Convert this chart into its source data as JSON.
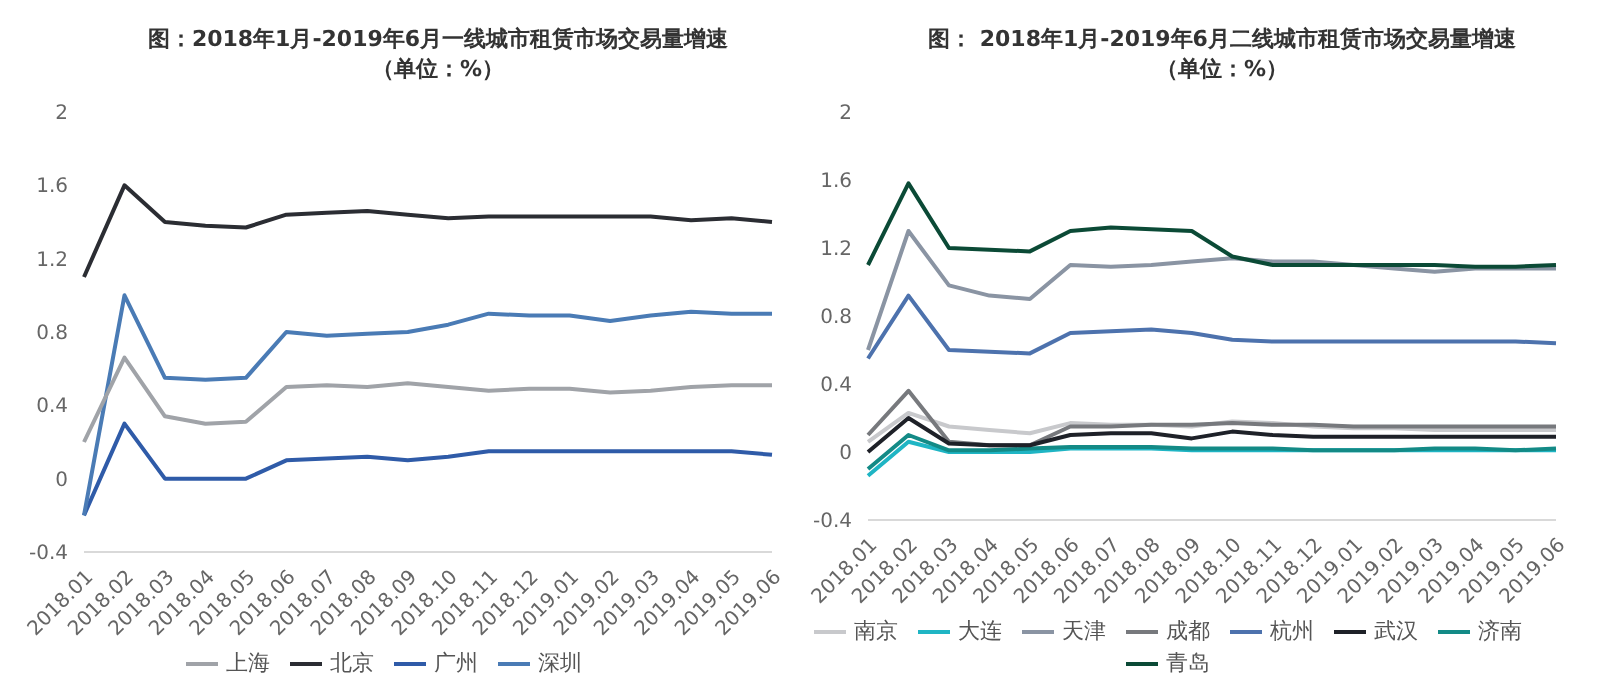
{
  "chart_data": [
    {
      "type": "line",
      "title": "图：2018年1月-2019年6月一线城市租赁市场交易量增速",
      "subtitle": "（单位：%）",
      "categories": [
        "2018.01",
        "2018.02",
        "2018.03",
        "2018.04",
        "2018.05",
        "2018.06",
        "2018.07",
        "2018.08",
        "2018.09",
        "2018.10",
        "2018.11",
        "2018.12",
        "2019.01",
        "2019.02",
        "2019.03",
        "2019.04",
        "2019.05",
        "2019.06"
      ],
      "ylim": [
        -0.4,
        2
      ],
      "yticks": [
        -0.4,
        0,
        0.4,
        0.8,
        1.2,
        1.6,
        2
      ],
      "grid": false,
      "legend": "bottom",
      "marker": "none",
      "line_style": "solid",
      "series": [
        {
          "name": "北京",
          "color": "#2b2d33",
          "values": [
            1.1,
            1.6,
            1.4,
            1.38,
            1.37,
            1.44,
            1.45,
            1.46,
            1.44,
            1.42,
            1.43,
            1.43,
            1.43,
            1.43,
            1.43,
            1.41,
            1.42,
            1.4
          ]
        },
        {
          "name": "广州",
          "color": "#2f5ba8",
          "values": [
            -0.2,
            0.3,
            0,
            0,
            0,
            0.1,
            0.11,
            0.12,
            0.1,
            0.12,
            0.15,
            0.15,
            0.15,
            0.15,
            0.15,
            0.15,
            0.15,
            0.13
          ]
        },
        {
          "name": "深圳",
          "color": "#4a7bb5",
          "values": [
            -0.2,
            1.0,
            0.55,
            0.54,
            0.55,
            0.8,
            0.78,
            0.79,
            0.8,
            0.84,
            0.9,
            0.89,
            0.89,
            0.86,
            0.89,
            0.91,
            0.9,
            0.9
          ]
        },
        {
          "name": "上海",
          "color": "#a0a3a8",
          "values": [
            0.2,
            0.66,
            0.34,
            0.3,
            0.31,
            0.5,
            0.51,
            0.5,
            0.52,
            0.5,
            0.48,
            0.49,
            0.49,
            0.47,
            0.48,
            0.5,
            0.51,
            0.51
          ]
        }
      ]
    },
    {
      "type": "line",
      "title": "图： 2018年1月-2019年6月二线城市租赁市场交易量增速",
      "subtitle": "（单位：%）",
      "categories": [
        "2018.01",
        "2018.02",
        "2018.03",
        "2018.04",
        "2018.05",
        "2018.06",
        "2018.07",
        "2018.08",
        "2018.09",
        "2018.10",
        "2018.11",
        "2018.12",
        "2019.01",
        "2019.02",
        "2019.03",
        "2019.04",
        "2019.05",
        "2019.06"
      ],
      "ylim": [
        -0.4,
        2
      ],
      "yticks": [
        -0.4,
        0,
        0.4,
        0.8,
        1.2,
        1.6,
        2
      ],
      "grid": false,
      "legend": "bottom",
      "marker": "none",
      "line_style": "solid",
      "series": [
        {
          "name": "天津",
          "color": "#8a94a3",
          "values": [
            0.6,
            1.3,
            0.98,
            0.92,
            0.9,
            1.1,
            1.09,
            1.1,
            1.12,
            1.14,
            1.12,
            1.12,
            1.1,
            1.08,
            1.06,
            1.08,
            1.08,
            1.08
          ]
        },
        {
          "name": "南京",
          "color": "#c8c9cc",
          "values": [
            0.06,
            0.23,
            0.15,
            0.13,
            0.11,
            0.17,
            0.16,
            0.16,
            0.15,
            0.18,
            0.17,
            0.15,
            0.14,
            0.14,
            0.13,
            0.13,
            0.13,
            0.13
          ]
        },
        {
          "name": "成都",
          "color": "#77797d",
          "values": [
            0.1,
            0.36,
            0.06,
            0.04,
            0.04,
            0.15,
            0.15,
            0.16,
            0.16,
            0.17,
            0.16,
            0.16,
            0.15,
            0.15,
            0.15,
            0.15,
            0.15,
            0.15
          ]
        },
        {
          "name": "大连",
          "color": "#1fb5c4",
          "values": [
            -0.14,
            0.06,
            0,
            0,
            0,
            0.02,
            0.02,
            0.02,
            0.01,
            0.01,
            0.01,
            0.01,
            0.01,
            0.01,
            0.01,
            0.01,
            0.01,
            0.01
          ]
        },
        {
          "name": "杭州",
          "color": "#4d72ad",
          "values": [
            0.55,
            0.92,
            0.6,
            0.59,
            0.58,
            0.7,
            0.71,
            0.72,
            0.7,
            0.66,
            0.65,
            0.65,
            0.65,
            0.65,
            0.65,
            0.65,
            0.65,
            0.64
          ]
        },
        {
          "name": "济南",
          "color": "#138a86",
          "values": [
            -0.1,
            0.1,
            0.01,
            0.01,
            0.02,
            0.03,
            0.03,
            0.03,
            0.02,
            0.02,
            0.02,
            0.01,
            0.01,
            0.01,
            0.02,
            0.02,
            0.01,
            0.02
          ]
        },
        {
          "name": "青岛",
          "color": "#0b4a36",
          "values": [
            1.1,
            1.58,
            1.2,
            1.19,
            1.18,
            1.3,
            1.32,
            1.31,
            1.3,
            1.15,
            1.1,
            1.1,
            1.1,
            1.1,
            1.1,
            1.09,
            1.09,
            1.1
          ]
        },
        {
          "name": "武汉",
          "color": "#1e2128",
          "values": [
            0,
            0.2,
            0.05,
            0.04,
            0.04,
            0.1,
            0.11,
            0.11,
            0.08,
            0.12,
            0.1,
            0.09,
            0.09,
            0.09,
            0.09,
            0.09,
            0.09,
            0.09
          ]
        }
      ]
    }
  ]
}
